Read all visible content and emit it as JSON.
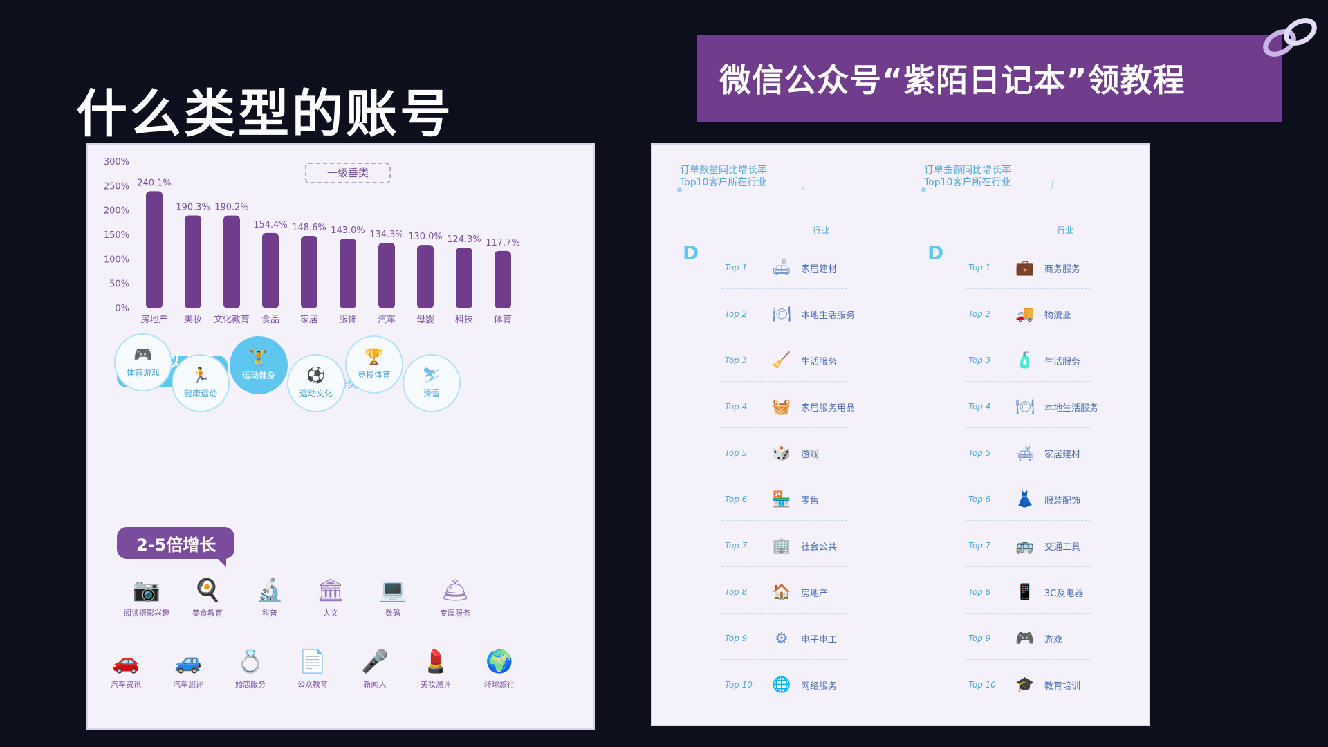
{
  "page": {
    "title": "什么类型的账号"
  },
  "banner": {
    "text": "微信公众号“紫陌日记本”领教程"
  },
  "left_panel": {
    "tag": "一级垂类",
    "chart_data": {
      "type": "bar",
      "categories": [
        "房地产",
        "美妆",
        "文化教育",
        "食品",
        "家居",
        "服饰",
        "汽车",
        "母婴",
        "科技",
        "体育"
      ],
      "values": [
        240.1,
        190.3,
        190.2,
        154.4,
        148.6,
        143.0,
        134.3,
        130.0,
        124.3,
        117.7
      ],
      "data_labels": [
        "240.1%",
        "190.3%",
        "190.2%",
        "154.4%",
        "148.6%",
        "143.0%",
        "134.3%",
        "130.0%",
        "124.3%",
        "117.7%"
      ],
      "y_ticks": [
        "0%",
        "50%",
        "100%",
        "150%",
        "200%",
        "250%",
        "300%"
      ],
      "ylim": [
        0,
        300
      ],
      "color": "#6f3d8c"
    },
    "bubble_top": "5倍以上增长",
    "section_label": "二级垂类",
    "circles": [
      {
        "label": "体育游戏",
        "glyph": "🎮"
      },
      {
        "label": "健康运动",
        "glyph": "🏃"
      },
      {
        "label": "运动健身",
        "glyph": "🏋"
      },
      {
        "label": "运动文化",
        "glyph": "⚽"
      },
      {
        "label": "竞技体育",
        "glyph": "🏆"
      },
      {
        "label": "滑雪",
        "glyph": "⛷"
      }
    ],
    "bubble_bottom": "2-5倍增长",
    "grid_row1": [
      {
        "label": "阅读摄影兴趣",
        "glyph": "📷"
      },
      {
        "label": "美食教育",
        "glyph": "🍳"
      },
      {
        "label": "科普",
        "glyph": "🔬"
      },
      {
        "label": "人文",
        "glyph": "🏛"
      },
      {
        "label": "数码",
        "glyph": "💻"
      },
      {
        "label": "专属服务",
        "glyph": "🛎"
      }
    ],
    "grid_row2": [
      {
        "label": "汽车资讯",
        "glyph": "🚗"
      },
      {
        "label": "汽车测评",
        "glyph": "🚙"
      },
      {
        "label": "婚恋服务",
        "glyph": "💍"
      },
      {
        "label": "公众教育",
        "glyph": "📄"
      },
      {
        "label": "新闻人",
        "glyph": "🎤"
      },
      {
        "label": "美妆测评",
        "glyph": "💄"
      },
      {
        "label": "环球旅行",
        "glyph": "🌍"
      }
    ]
  },
  "right_panel": {
    "left_column": {
      "heading_line1": "订单数量同比增长率",
      "heading_line2": "Top10客户所在行业",
      "industry_head": "行业",
      "rows": [
        {
          "rank": "Top 1",
          "name": "家居建材",
          "glyph": "🛋"
        },
        {
          "rank": "Top 2",
          "name": "本地生活服务",
          "glyph": "🍽"
        },
        {
          "rank": "Top 3",
          "name": "生活服务",
          "glyph": "🧹"
        },
        {
          "rank": "Top 4",
          "name": "家居服务用品",
          "glyph": "🧺"
        },
        {
          "rank": "Top 5",
          "name": "游戏",
          "glyph": "🎲"
        },
        {
          "rank": "Top 6",
          "name": "零售",
          "glyph": "🏪"
        },
        {
          "rank": "Top 7",
          "name": "社会公共",
          "glyph": "🏢"
        },
        {
          "rank": "Top 8",
          "name": "房地产",
          "glyph": "🏠"
        },
        {
          "rank": "Top 9",
          "name": "电子电工",
          "glyph": "⚙"
        },
        {
          "rank": "Top 10",
          "name": "网络服务",
          "glyph": "🌐"
        }
      ]
    },
    "right_column": {
      "heading_line1": "订单金额同比增长率",
      "heading_line2": "Top10客户所在行业",
      "industry_head": "行业",
      "rows": [
        {
          "rank": "Top 1",
          "name": "商务服务",
          "glyph": "💼"
        },
        {
          "rank": "Top 2",
          "name": "物流业",
          "glyph": "🚚"
        },
        {
          "rank": "Top 3",
          "name": "生活服务",
          "glyph": "🧴"
        },
        {
          "rank": "Top 4",
          "name": "本地生活服务",
          "glyph": "🍽"
        },
        {
          "rank": "Top 5",
          "name": "家居建材",
          "glyph": "🛋"
        },
        {
          "rank": "Top 6",
          "name": "服装配饰",
          "glyph": "👗"
        },
        {
          "rank": "Top 7",
          "name": "交通工具",
          "glyph": "🚌"
        },
        {
          "rank": "Top 8",
          "name": "3C及电器",
          "glyph": "📱"
        },
        {
          "rank": "Top 9",
          "name": "游戏",
          "glyph": "🎮"
        },
        {
          "rank": "Top 10",
          "name": "教育培训",
          "glyph": "🎓"
        }
      ]
    }
  }
}
